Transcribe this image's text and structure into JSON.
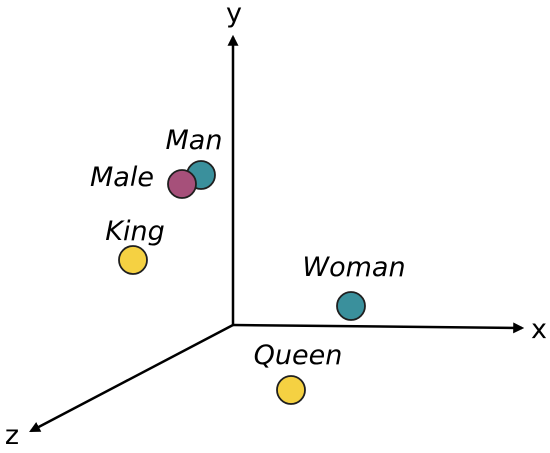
{
  "axes": {
    "x_label": "x",
    "y_label": "y",
    "z_label": "z"
  },
  "points": {
    "man": {
      "label": "Man",
      "color": "#3a909c"
    },
    "male": {
      "label": "Male",
      "color": "#a6507a"
    },
    "king": {
      "label": "King",
      "color": "#f5d142"
    },
    "woman": {
      "label": "Woman",
      "color": "#3a909c"
    },
    "queen": {
      "label": "Queen",
      "color": "#f5d142"
    }
  },
  "colors": {
    "axis": "#000000",
    "point_outline": "#1f1f1f"
  }
}
